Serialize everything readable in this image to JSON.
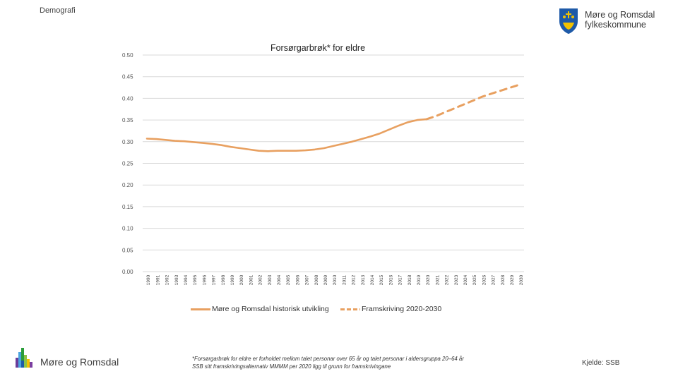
{
  "header": {
    "section_label": "Demografi",
    "logo_name_line1": "Møre og Romsdal",
    "logo_name_line2": "fylkeskommune"
  },
  "chart_data": {
    "type": "line",
    "title": "Forsørgarbrøk* for eldre",
    "xlabel": "",
    "ylabel": "",
    "ylim": [
      0,
      0.5
    ],
    "yticks": [
      "0.00",
      "0.05",
      "0.10",
      "0.15",
      "0.20",
      "0.25",
      "0.30",
      "0.35",
      "0.40",
      "0.45",
      "0.50"
    ],
    "grid": true,
    "legend_position": "bottom",
    "x": [
      1990,
      1991,
      1992,
      1993,
      1994,
      1995,
      1996,
      1997,
      1998,
      1999,
      2000,
      2001,
      2002,
      2003,
      2004,
      2005,
      2006,
      2007,
      2008,
      2009,
      2010,
      2011,
      2012,
      2013,
      2014,
      2015,
      2016,
      2017,
      2018,
      2019,
      2020,
      2021,
      2022,
      2023,
      2024,
      2025,
      2026,
      2027,
      2028,
      2029,
      2030
    ],
    "series": [
      {
        "name": "Møre og Romsdal historisk utvikling",
        "style": "solid",
        "color": "#E8A060",
        "x": [
          1990,
          1991,
          1992,
          1993,
          1994,
          1995,
          1996,
          1997,
          1998,
          1999,
          2000,
          2001,
          2002,
          2003,
          2004,
          2005,
          2006,
          2007,
          2008,
          2009,
          2010,
          2011,
          2012,
          2013,
          2014,
          2015,
          2016,
          2017,
          2018,
          2019,
          2020
        ],
        "values": [
          0.307,
          0.306,
          0.304,
          0.302,
          0.301,
          0.299,
          0.297,
          0.295,
          0.292,
          0.288,
          0.285,
          0.282,
          0.279,
          0.278,
          0.279,
          0.279,
          0.279,
          0.28,
          0.282,
          0.285,
          0.29,
          0.295,
          0.3,
          0.306,
          0.312,
          0.319,
          0.328,
          0.337,
          0.345,
          0.35,
          0.352
        ]
      },
      {
        "name": "Framskriving 2020-2030",
        "style": "dashed",
        "color": "#E8A060",
        "x": [
          2020,
          2021,
          2022,
          2023,
          2024,
          2025,
          2026,
          2027,
          2028,
          2029,
          2030
        ],
        "values": [
          0.352,
          0.359,
          0.368,
          0.377,
          0.386,
          0.395,
          0.404,
          0.411,
          0.418,
          0.425,
          0.432
        ]
      }
    ]
  },
  "footer": {
    "org_name": "Møre og Romsdal",
    "footnote_line1": "*Forsørgarbrøk for eldre er forholdet mellom talet personar over 65 år og talet personar i aldersgruppa 20–64 år",
    "footnote_line2": "SSB sitt framskrivingsalternativ MMMM per 2020 ligg til grunn for framskrivingane",
    "source": "Kjelde: SSB"
  }
}
